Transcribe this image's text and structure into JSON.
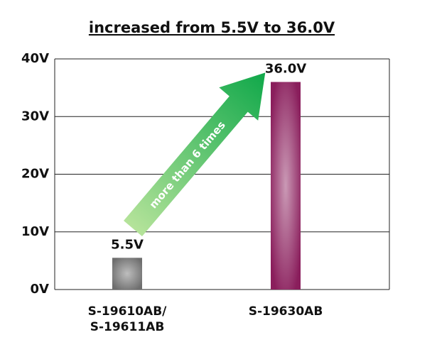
{
  "chart_data": {
    "type": "bar",
    "title": "increased from 5.5V to 36.0V",
    "categories": [
      "S-19610AB/\nS-19611AB",
      "S-19630AB"
    ],
    "values": [
      5.5,
      36.0
    ],
    "value_labels": [
      "5.5V",
      "36.0V"
    ],
    "colors": [
      "#6e6e6e",
      "#8a1e5c"
    ],
    "ylim": [
      0,
      40
    ],
    "yticks": [
      {
        "value": 0,
        "label": "0V"
      },
      {
        "value": 10,
        "label": "10V"
      },
      {
        "value": 20,
        "label": "20V"
      },
      {
        "value": 30,
        "label": "30V"
      },
      {
        "value": 40,
        "label": "40V"
      }
    ],
    "grid": true,
    "annotation": "more than 6 times"
  }
}
